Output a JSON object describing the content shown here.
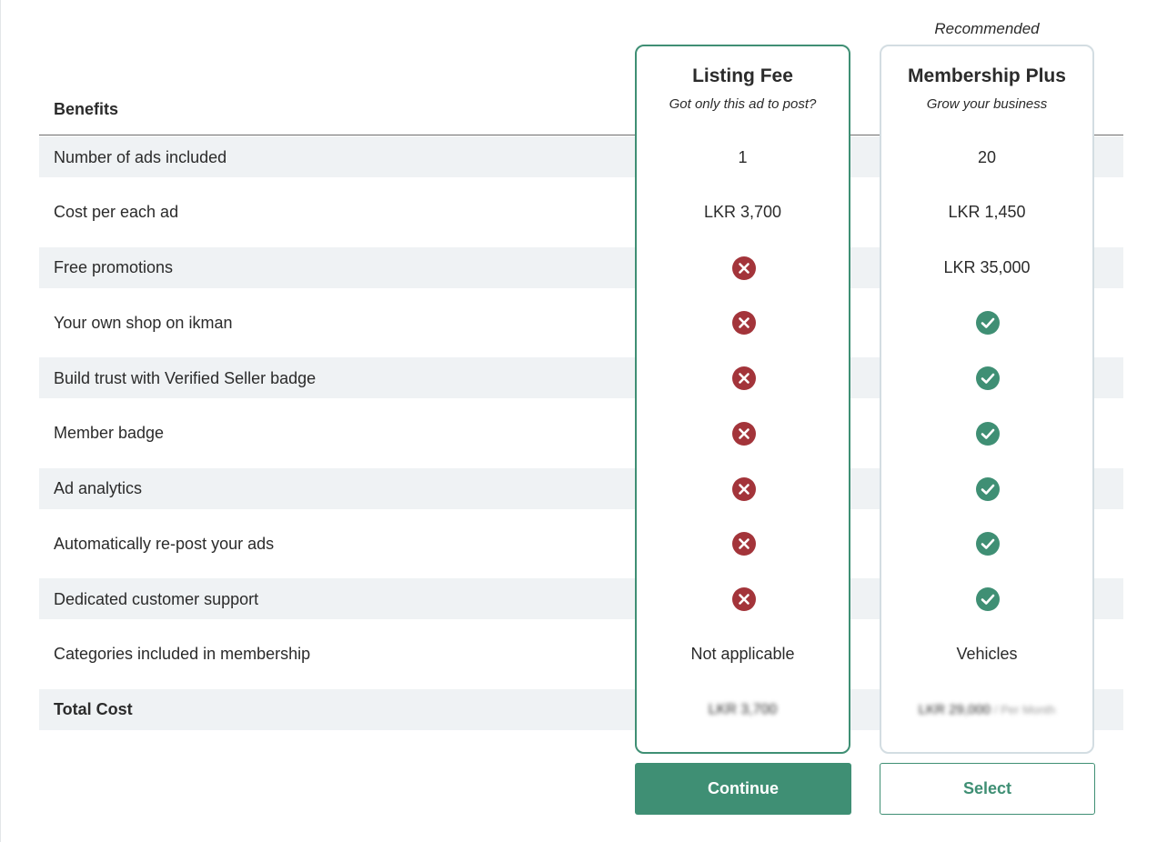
{
  "header": {
    "benefits_label": "Benefits"
  },
  "plans": [
    {
      "name": "Listing Fee",
      "tagline": "Got only this ad to post?",
      "button": "Continue"
    },
    {
      "name": "Membership Plus",
      "tagline": "Grow your business",
      "badge": "Recommended",
      "button": "Select"
    }
  ],
  "rows": [
    {
      "benefit": "Number of ads included",
      "values": [
        "1",
        "20"
      ]
    },
    {
      "benefit": "Cost per each ad",
      "values": [
        "LKR 3,700",
        "LKR 1,450"
      ]
    },
    {
      "benefit": "Free promotions",
      "values": [
        false,
        "LKR 35,000"
      ]
    },
    {
      "benefit": "Your own shop on ikman",
      "values": [
        false,
        true
      ]
    },
    {
      "benefit": "Build trust with Verified Seller badge",
      "values": [
        false,
        true
      ]
    },
    {
      "benefit": "Member badge",
      "values": [
        false,
        true
      ]
    },
    {
      "benefit": "Ad analytics",
      "values": [
        false,
        true
      ]
    },
    {
      "benefit": "Automatically re-post your ads",
      "values": [
        false,
        true
      ]
    },
    {
      "benefit": "Dedicated customer support",
      "values": [
        false,
        true
      ]
    },
    {
      "benefit": "Categories included in membership",
      "values": [
        "Not applicable",
        "Vehicles"
      ]
    }
  ],
  "total": {
    "label": "Total Cost",
    "values": [
      "LKR 3,700",
      "LKR 29,000"
    ],
    "period": "/ Per Month"
  }
}
